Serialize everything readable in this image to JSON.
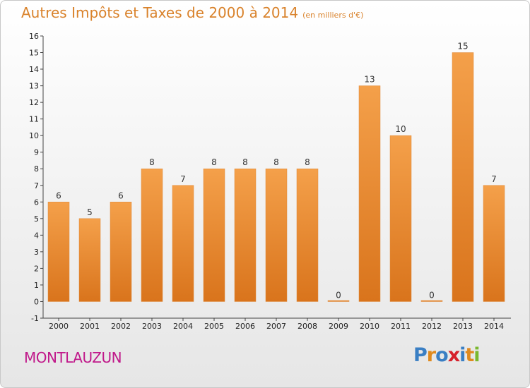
{
  "title": "Autres Impôts et Taxes de 2000 à 2014",
  "unit_note": "(en milliers d'€)",
  "commune": "MONTLAUZUN",
  "logo": {
    "letters": [
      "P",
      "r",
      "o",
      "x",
      "i",
      "t",
      "i"
    ],
    "colors": [
      "#3a7fc4",
      "#e08a1e",
      "#3a7fc4",
      "#d6202b",
      "#3a7fc4",
      "#e08a1e",
      "#7ab82f"
    ]
  },
  "chart_data": {
    "type": "bar",
    "title": "Autres Impôts et Taxes de 2000 à 2014",
    "subtitle": "(en milliers d'€)",
    "categories": [
      "2000",
      "2001",
      "2002",
      "2003",
      "2004",
      "2005",
      "2006",
      "2007",
      "2008",
      "2009",
      "2010",
      "2011",
      "2012",
      "2013",
      "2014"
    ],
    "values": [
      6,
      5,
      6,
      8,
      7,
      8,
      8,
      8,
      8,
      0,
      13,
      10,
      0,
      15,
      7
    ],
    "value_labels": [
      "6",
      "5",
      "6",
      "8",
      "7",
      "8",
      "8",
      "8",
      "8",
      "0",
      "13",
      "10",
      "0",
      "15",
      "7"
    ],
    "ylim": [
      -1,
      16
    ],
    "yticks": [
      "-1",
      "0",
      "1",
      "2",
      "3",
      "4",
      "5",
      "6",
      "7",
      "8",
      "9",
      "10",
      "11",
      "12",
      "13",
      "14",
      "15",
      "16"
    ],
    "grid": false,
    "bar_color": "#f4a04a",
    "bar_color_dark": "#d9741c"
  }
}
